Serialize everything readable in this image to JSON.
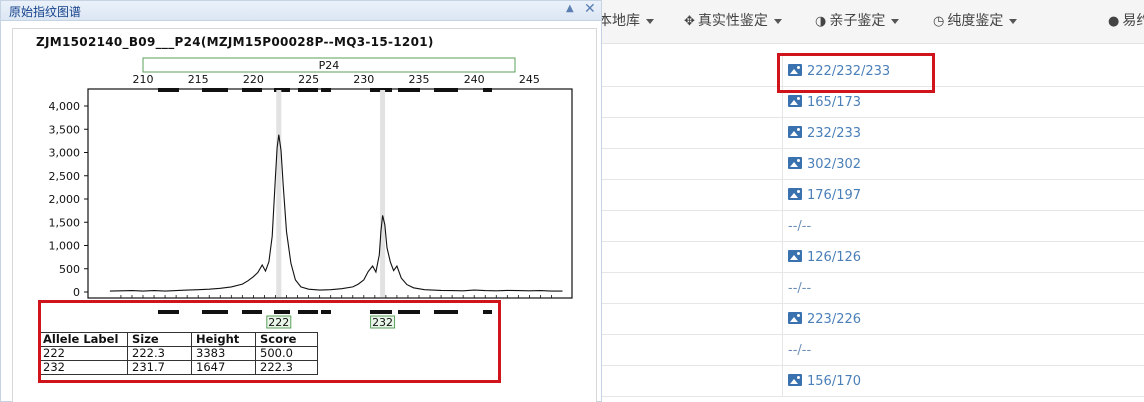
{
  "nav": {
    "item1_label": "本地库",
    "item2_label": "真实性鉴定",
    "item3_label": "亲子鉴定",
    "item4_label": "纯度鉴定",
    "item5_label": "易约"
  },
  "panel": {
    "title": "原始指纹图谱",
    "sample_name": "ZJM1502140_B09___P24(MZJM15P00028P--MQ3-15-1201)"
  },
  "chart_data": {
    "type": "line",
    "title": "ZJM1502140_B09___P24(MZJM15P00028P--MQ3-15-1201)",
    "marker_name": "P24",
    "x_ticks": [
      210,
      215,
      220,
      225,
      230,
      235,
      240,
      245
    ],
    "y_ticks": [
      0,
      500,
      1000,
      1500,
      2000,
      2500,
      3000,
      3500,
      4000
    ],
    "y_tick_labels": [
      "0",
      "500",
      "1,000",
      "1,500",
      "2,000",
      "2,500",
      "3,000",
      "3,500",
      "4,000"
    ],
    "xlim": [
      207,
      248
    ],
    "ylim": [
      -150,
      4400
    ],
    "peaks": [
      {
        "label": "222",
        "size": 222.3,
        "height": 3383
      },
      {
        "label": "232",
        "size": 231.7,
        "height": 1647
      }
    ],
    "series": [
      {
        "x": [
          207,
          208,
          209,
          210,
          211,
          212,
          213,
          214,
          215,
          216,
          217,
          218,
          219,
          219.5,
          220,
          220.4,
          220.8,
          221.1,
          221.4,
          221.7,
          222.0,
          222.15,
          222.3,
          222.5,
          222.7,
          223.0,
          223.4,
          223.8,
          224.3,
          225,
          226,
          227,
          228,
          229,
          229.5,
          230,
          230.4,
          230.8,
          231.1,
          231.4,
          231.55,
          231.7,
          231.9,
          232.1,
          232.4,
          232.7,
          233.0,
          233.4,
          233.9,
          234.5,
          235.5,
          237,
          238,
          239,
          240,
          241,
          242,
          243,
          244,
          245,
          246,
          247,
          248
        ],
        "y": [
          20,
          25,
          30,
          20,
          30,
          20,
          30,
          40,
          50,
          60,
          80,
          110,
          170,
          240,
          330,
          420,
          580,
          450,
          650,
          1200,
          2500,
          3100,
          3383,
          3050,
          2300,
          1300,
          620,
          260,
          110,
          60,
          40,
          50,
          70,
          110,
          170,
          260,
          440,
          560,
          430,
          800,
          1300,
          1647,
          1450,
          950,
          650,
          460,
          560,
          300,
          160,
          90,
          50,
          35,
          30,
          25,
          40,
          30,
          25,
          35,
          30,
          25,
          30,
          20,
          20
        ]
      }
    ]
  },
  "allele_table": {
    "headers": [
      "Allele Label",
      "Size",
      "Height",
      "Score"
    ],
    "rows": [
      [
        "222",
        "222.3",
        "3383",
        "500.0"
      ],
      [
        "232",
        "231.7",
        "1647",
        "222.3"
      ]
    ]
  },
  "table": {
    "rows": [
      {
        "text": "222/232/233",
        "link": true
      },
      {
        "text": "165/173",
        "link": true
      },
      {
        "text": "232/233",
        "link": true
      },
      {
        "text": "302/302",
        "link": true
      },
      {
        "text": "176/197",
        "link": true
      },
      {
        "text": "--/--",
        "link": false
      },
      {
        "text": "126/126",
        "link": true
      },
      {
        "text": "--/--",
        "link": false
      },
      {
        "text": "223/226",
        "link": true
      },
      {
        "text": "--/--",
        "link": false
      },
      {
        "text": "156/170",
        "link": true
      }
    ]
  },
  "colors": {
    "highlight": "#d0141b",
    "link": "#4a7fb8",
    "marker_box": "#5aa05a"
  }
}
